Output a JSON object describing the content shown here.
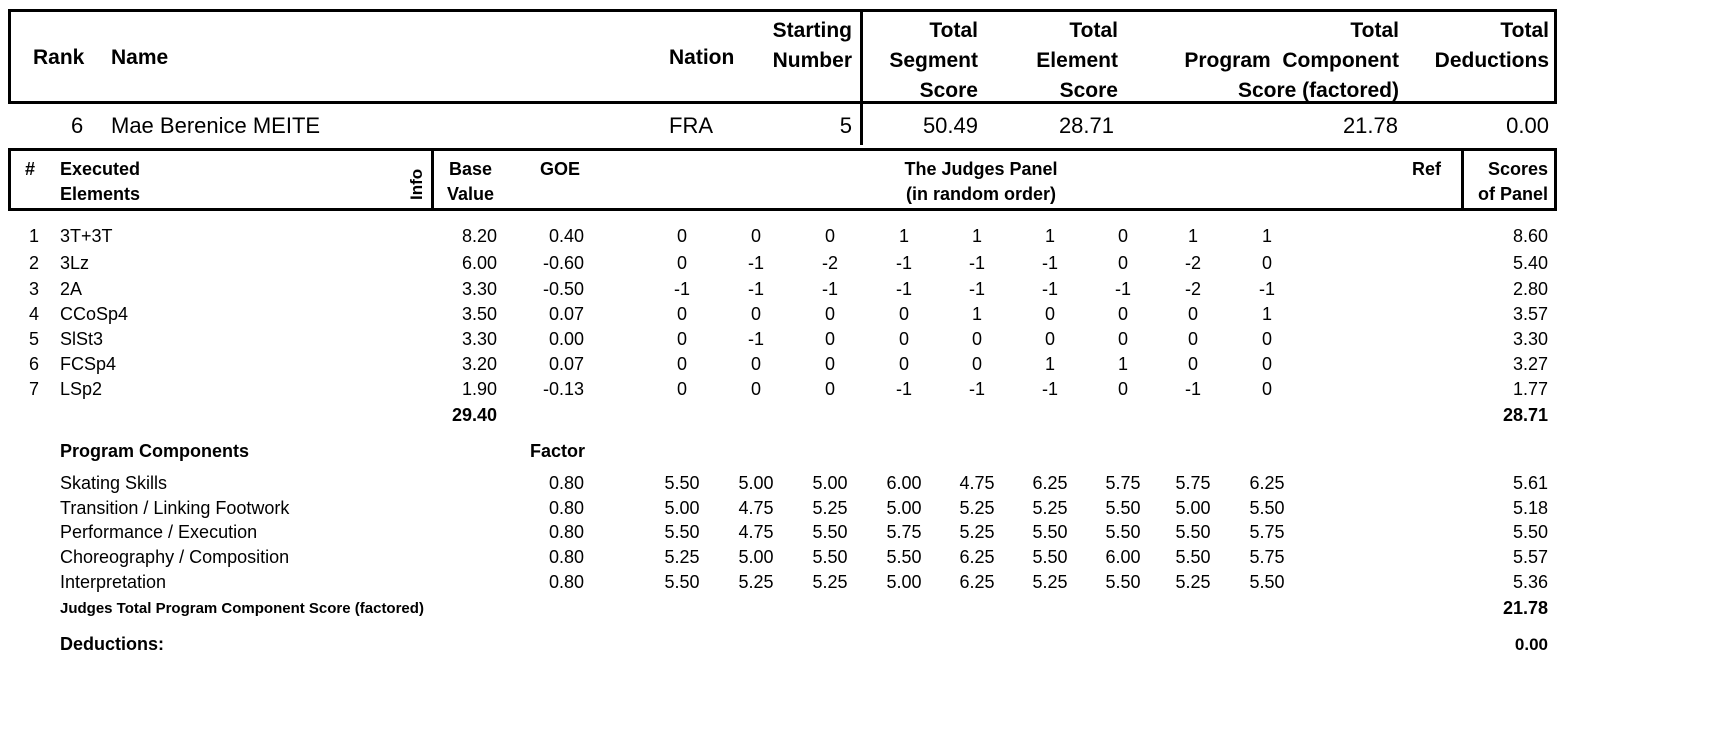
{
  "header": {
    "rank": "Rank",
    "name": "Name",
    "nation": "Nation",
    "starting_number": [
      "Starting",
      "Number"
    ],
    "tss": [
      "Total",
      "Segment",
      "Score"
    ],
    "tes": [
      "Total",
      "Element",
      "Score"
    ],
    "pcs": [
      "Total",
      "Program  Component",
      "Score (factored)"
    ],
    "ded": [
      "Total",
      "Deductions"
    ]
  },
  "skater": {
    "rank": "6",
    "name": "Mae Berenice MEITE",
    "nation": "FRA",
    "starting_number": "5",
    "tss": "50.49",
    "tes": "28.71",
    "pcs": "21.78",
    "ded": "0.00"
  },
  "elements_header": {
    "num": "#",
    "executed": [
      "Executed",
      "Elements"
    ],
    "info": "Info",
    "base": [
      "Base",
      "Value"
    ],
    "goe": "GOE",
    "panel": [
      "The Judges Panel",
      "(in random order)"
    ],
    "ref": "Ref",
    "scores": [
      "Scores",
      "of Panel"
    ]
  },
  "elements": [
    {
      "num": "1",
      "name": "3T+3T",
      "base": "8.20",
      "goe": "0.40",
      "judges": [
        "0",
        "0",
        "0",
        "1",
        "1",
        "1",
        "0",
        "1",
        "1"
      ],
      "score": "8.60"
    },
    {
      "num": "2",
      "name": "3Lz",
      "base": "6.00",
      "goe": "-0.60",
      "judges": [
        "0",
        "-1",
        "-2",
        "-1",
        "-1",
        "-1",
        "0",
        "-2",
        "0"
      ],
      "score": "5.40"
    },
    {
      "num": "3",
      "name": "2A",
      "base": "3.30",
      "goe": "-0.50",
      "judges": [
        "-1",
        "-1",
        "-1",
        "-1",
        "-1",
        "-1",
        "-1",
        "-2",
        "-1"
      ],
      "score": "2.80"
    },
    {
      "num": "4",
      "name": "CCoSp4",
      "base": "3.50",
      "goe": "0.07",
      "judges": [
        "0",
        "0",
        "0",
        "0",
        "1",
        "0",
        "0",
        "0",
        "1"
      ],
      "score": "3.57"
    },
    {
      "num": "5",
      "name": "SlSt3",
      "base": "3.30",
      "goe": "0.00",
      "judges": [
        "0",
        "-1",
        "0",
        "0",
        "0",
        "0",
        "0",
        "0",
        "0"
      ],
      "score": "3.30"
    },
    {
      "num": "6",
      "name": "FCSp4",
      "base": "3.20",
      "goe": "0.07",
      "judges": [
        "0",
        "0",
        "0",
        "0",
        "0",
        "1",
        "1",
        "0",
        "0"
      ],
      "score": "3.27"
    },
    {
      "num": "7",
      "name": "LSp2",
      "base": "1.90",
      "goe": "-0.13",
      "judges": [
        "0",
        "0",
        "0",
        "-1",
        "-1",
        "-1",
        "0",
        "-1",
        "0"
      ],
      "score": "1.77"
    }
  ],
  "base_total": "29.40",
  "elements_total": "28.71",
  "components_header": {
    "title": "Program Components",
    "factor": "Factor"
  },
  "components": [
    {
      "name": "Skating Skills",
      "factor": "0.80",
      "judges": [
        "5.50",
        "5.00",
        "5.00",
        "6.00",
        "4.75",
        "6.25",
        "5.75",
        "5.75",
        "6.25"
      ],
      "score": "5.61"
    },
    {
      "name": "Transition / Linking Footwork",
      "factor": "0.80",
      "judges": [
        "5.00",
        "4.75",
        "5.25",
        "5.00",
        "5.25",
        "5.25",
        "5.50",
        "5.00",
        "5.50"
      ],
      "score": "5.18"
    },
    {
      "name": "Performance / Execution",
      "factor": "0.80",
      "judges": [
        "5.50",
        "4.75",
        "5.50",
        "5.75",
        "5.25",
        "5.50",
        "5.50",
        "5.50",
        "5.75"
      ],
      "score": "5.50"
    },
    {
      "name": "Choreography / Composition",
      "factor": "0.80",
      "judges": [
        "5.25",
        "5.00",
        "5.50",
        "5.50",
        "6.25",
        "5.50",
        "6.00",
        "5.50",
        "5.75"
      ],
      "score": "5.57"
    },
    {
      "name": "Interpretation",
      "factor": "0.80",
      "judges": [
        "5.50",
        "5.25",
        "5.25",
        "5.00",
        "6.25",
        "5.25",
        "5.50",
        "5.25",
        "5.50"
      ],
      "score": "5.36"
    }
  ],
  "pcs_total_label": "Judges Total Program Component Score (factored)",
  "pcs_total": "21.78",
  "deductions_label": "Deductions:",
  "deductions_value": "0.00"
}
